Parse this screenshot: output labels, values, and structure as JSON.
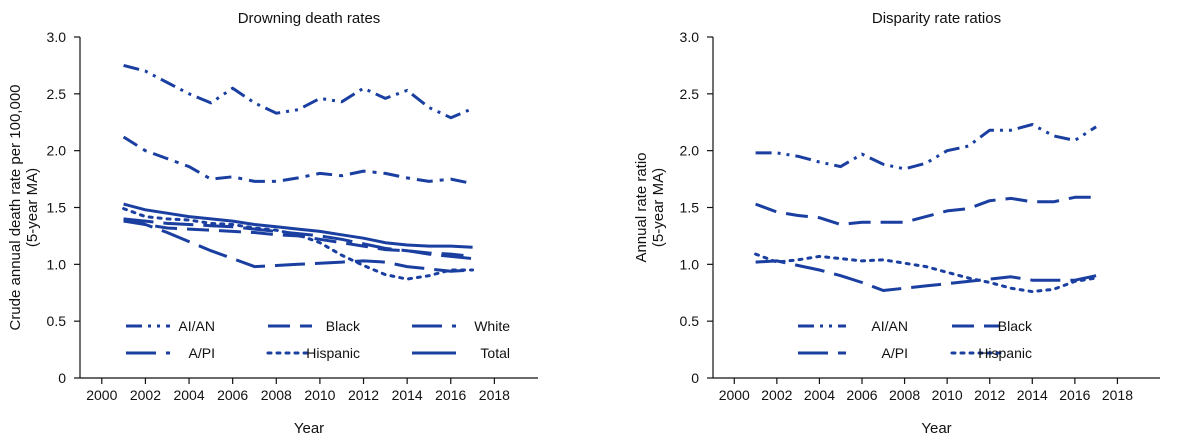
{
  "chart_data": [
    {
      "type": "line",
      "title": "Drowning death rates",
      "xlabel": "Year",
      "ylabel": "Crude annual death rate per 100,000",
      "ylabel2": "(5-year MA)",
      "xlim": [
        1999,
        2020
      ],
      "ylim": [
        0,
        3.0
      ],
      "x_ticks": [
        2000,
        2002,
        2004,
        2006,
        2008,
        2010,
        2012,
        2014,
        2016,
        2018
      ],
      "x_tick_labels": [
        "2000",
        "2002",
        "2004",
        "2006",
        "2008",
        "2010",
        "2012",
        "2014",
        "2016",
        "2018"
      ],
      "y_ticks": [
        0,
        0.5,
        1.0,
        1.5,
        2.0,
        2.5,
        3.0
      ],
      "y_tick_labels": [
        "0",
        "0.5",
        "1.0",
        "1.5",
        "2.0",
        "2.5",
        "3.0"
      ],
      "color": "#1a3fa0",
      "grid": false,
      "x": [
        2001,
        2002,
        2003,
        2004,
        2005,
        2006,
        2007,
        2008,
        2009,
        2010,
        2011,
        2012,
        2013,
        2014,
        2015,
        2016,
        2017
      ],
      "series": [
        {
          "name": "AI/AN",
          "dash": "dashdotdot",
          "values": [
            2.75,
            2.7,
            2.6,
            2.5,
            2.42,
            2.55,
            2.42,
            2.33,
            2.36,
            2.46,
            2.43,
            2.55,
            2.46,
            2.53,
            2.38,
            2.29,
            2.37
          ]
        },
        {
          "name": "Black",
          "dash": "dash",
          "values": [
            1.38,
            1.35,
            1.32,
            1.31,
            1.3,
            1.29,
            1.28,
            1.26,
            1.25,
            1.22,
            1.19,
            1.16,
            1.13,
            1.12,
            1.1,
            1.09,
            1.07
          ]
        },
        {
          "name": "White",
          "dash": "longdash",
          "values": [
            1.4,
            1.38,
            1.36,
            1.35,
            1.34,
            1.33,
            1.31,
            1.29,
            1.27,
            1.25,
            1.22,
            1.18,
            1.14,
            1.12,
            1.09,
            1.07,
            1.05
          ]
        },
        {
          "name": "A/PI",
          "dash": "longdash",
          "values": [
            1.4,
            1.35,
            1.28,
            1.2,
            1.12,
            1.05,
            0.98,
            0.99,
            1.0,
            1.01,
            1.02,
            1.03,
            1.02,
            0.98,
            0.96,
            0.94,
            0.95
          ]
        },
        {
          "name": "Hispanic",
          "dash": "dot",
          "values": [
            1.49,
            1.42,
            1.4,
            1.39,
            1.36,
            1.35,
            1.32,
            1.3,
            1.26,
            1.19,
            1.08,
            0.99,
            0.91,
            0.87,
            0.9,
            0.95,
            0.95
          ]
        },
        {
          "name": "Total",
          "dash": "solid",
          "values": [
            1.53,
            1.48,
            1.45,
            1.42,
            1.4,
            1.38,
            1.35,
            1.33,
            1.31,
            1.29,
            1.26,
            1.23,
            1.19,
            1.17,
            1.16,
            1.16,
            1.15
          ]
        },
        {
          "name": "AI/AN (dash-dot)",
          "dash": "dashdot",
          "values": [
            2.12,
            2.0,
            1.93,
            1.86,
            1.75,
            1.77,
            1.73,
            1.73,
            1.76,
            1.8,
            1.78,
            1.82,
            1.8,
            1.76,
            1.73,
            1.75,
            1.71
          ]
        }
      ],
      "legend": [
        {
          "label": "AI/AN",
          "dash": "dashdotdot"
        },
        {
          "label": "Black",
          "dash": "dash"
        },
        {
          "label": "White",
          "dash": "longdash"
        },
        {
          "label": "A/PI",
          "dash": "longdash"
        },
        {
          "label": "Hispanic",
          "dash": "dot"
        },
        {
          "label": "Total",
          "dash": "solid"
        }
      ]
    },
    {
      "type": "line",
      "title": "Disparity rate ratios",
      "xlabel": "Year",
      "ylabel": "Annual rate ratio",
      "ylabel2": "(5-year MA)",
      "xlim": [
        1999,
        2020
      ],
      "ylim": [
        0,
        3.0
      ],
      "x_ticks": [
        2000,
        2002,
        2004,
        2006,
        2008,
        2010,
        2012,
        2014,
        2016,
        2018
      ],
      "x_tick_labels": [
        "2000",
        "2002",
        "2004",
        "2006",
        "2008",
        "2010",
        "2012",
        "2014",
        "2016",
        "2018"
      ],
      "y_ticks": [
        0,
        0.5,
        1.0,
        1.5,
        2.0,
        2.5,
        3.0
      ],
      "y_tick_labels": [
        "0",
        "0.5",
        "1.0",
        "1.5",
        "2.0",
        "2.5",
        "3.0"
      ],
      "color": "#1a3fa0",
      "grid": false,
      "x": [
        2001,
        2002,
        2003,
        2004,
        2005,
        2006,
        2007,
        2008,
        2009,
        2010,
        2011,
        2012,
        2013,
        2014,
        2015,
        2016,
        2017
      ],
      "series": [
        {
          "name": "AI/AN",
          "dash": "dashdotdot",
          "values": [
            1.98,
            1.98,
            1.95,
            1.9,
            1.86,
            1.97,
            1.88,
            1.84,
            1.89,
            2.0,
            2.04,
            2.18,
            2.18,
            2.23,
            2.13,
            2.09,
            2.21
          ]
        },
        {
          "name": "Black",
          "dash": "dash",
          "values": [
            1.53,
            1.46,
            1.43,
            1.41,
            1.35,
            1.37,
            1.37,
            1.37,
            1.42,
            1.47,
            1.49,
            1.56,
            1.58,
            1.55,
            1.55,
            1.59,
            1.59
          ]
        },
        {
          "name": "A/PI",
          "dash": "longdash",
          "values": [
            1.02,
            1.03,
            0.99,
            0.95,
            0.9,
            0.84,
            0.77,
            0.79,
            0.81,
            0.83,
            0.85,
            0.87,
            0.89,
            0.86,
            0.86,
            0.86,
            0.9
          ]
        },
        {
          "name": "Hispanic",
          "dash": "dot",
          "values": [
            1.09,
            1.02,
            1.04,
            1.07,
            1.05,
            1.03,
            1.04,
            1.01,
            0.98,
            0.93,
            0.88,
            0.84,
            0.79,
            0.76,
            0.78,
            0.85,
            0.88
          ]
        }
      ],
      "legend": [
        {
          "label": "AI/AN",
          "dash": "dashdotdot"
        },
        {
          "label": "Black",
          "dash": "dash"
        },
        {
          "label": "A/PI",
          "dash": "longdash"
        },
        {
          "label": "Hispanic",
          "dash": "dot"
        }
      ]
    }
  ]
}
